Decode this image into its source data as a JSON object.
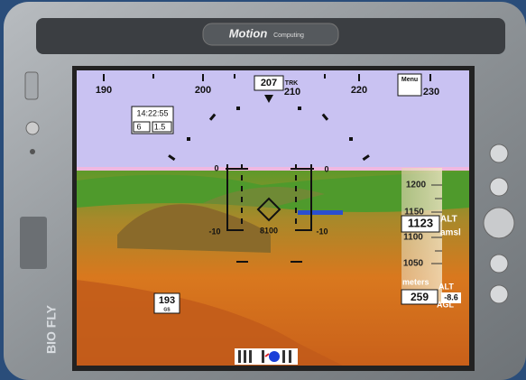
{
  "device": {
    "brand": "Motion",
    "brand_sub": "Computing",
    "side_logo": "BIO FLY"
  },
  "heading_tape": {
    "labels": [
      "190",
      "200",
      "210",
      "220",
      "230"
    ],
    "current": "207",
    "track": "TRK",
    "menu": "Menu"
  },
  "info_box": {
    "time": "14:22:55",
    "field_a": "6",
    "field_b": "1.5"
  },
  "pitch_ladder": {
    "left_zero": "0",
    "right_zero": "0",
    "left_minus": "-10",
    "right_minus": "-10",
    "center": "8100"
  },
  "altitude_tape": {
    "labels": [
      "1200",
      "1150",
      "1100",
      "1050"
    ],
    "current": "1123",
    "alt_label": "ALT",
    "alt_ref": "amsl",
    "units": "meters",
    "agl_value": "259",
    "agl_label": "ALT",
    "agl_ref": "AGL",
    "vertical_speed": "-8.6"
  },
  "speed": {
    "value": "193",
    "label": "GS"
  }
}
